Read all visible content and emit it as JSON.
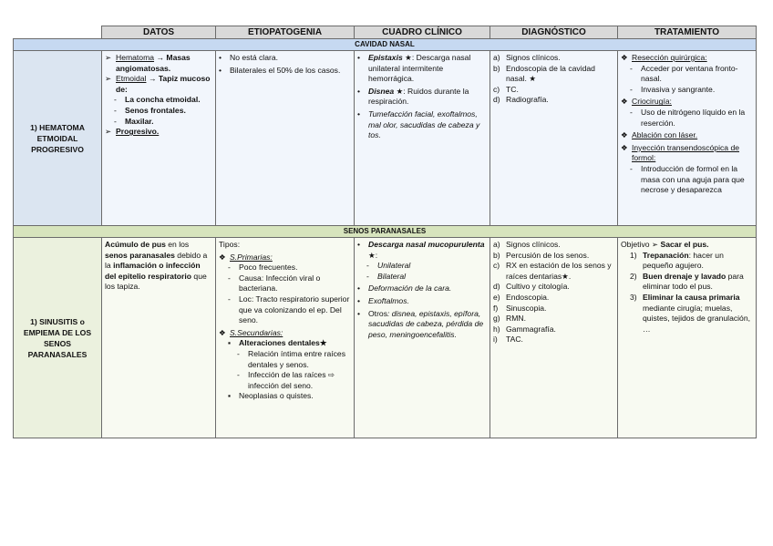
{
  "headers": [
    "DATOS",
    "ETIOPATOGENIA",
    "CUADRO CLÍNICO",
    "DIAGNÓSTICO",
    "TRATAMIENTO"
  ],
  "sections": [
    {
      "band": "CAVIDAD NASAL",
      "band_color": "#c6d9f1",
      "label": "1) HEMATOMA ETMOIDAL PROGRESIVO",
      "cells": [
        [
          {
            "m": "➢",
            "i": 0,
            "p": [
              {
                "t": "Hematoma",
                "s": "u"
              },
              {
                "t": " → "
              },
              {
                "t": "Masas angiomatosas.",
                "s": "b"
              }
            ]
          },
          {
            "m": "➢",
            "i": 0,
            "p": [
              {
                "t": "Etmoidal",
                "s": "u"
              },
              {
                "t": " → "
              },
              {
                "t": "Tapiz mucoso de:",
                "s": "b"
              }
            ]
          },
          {
            "m": "-",
            "i": 1,
            "p": [
              {
                "t": "La concha etmoidal.",
                "s": "b"
              }
            ]
          },
          {
            "m": "-",
            "i": 1,
            "p": [
              {
                "t": "Senos frontales.",
                "s": "b"
              }
            ]
          },
          {
            "m": "-",
            "i": 1,
            "p": [
              {
                "t": "Maxilar.",
                "s": "b"
              }
            ]
          },
          {
            "m": "➢",
            "i": 0,
            "p": [
              {
                "t": "Progresivo.",
                "s": "b u"
              }
            ]
          }
        ],
        [
          {
            "m": "•",
            "i": 0,
            "p": [
              {
                "t": "No está clara."
              }
            ]
          },
          {
            "m": "•",
            "i": 0,
            "p": [
              {
                "t": "Bilaterales el 50% de los casos."
              }
            ]
          }
        ],
        [
          {
            "m": "•",
            "i": 0,
            "p": [
              {
                "t": "Epistaxis",
                "s": "b i"
              },
              {
                "t": " ★: Descarga nasal unilateral intermitente hemorrágica."
              }
            ]
          },
          {
            "m": "•",
            "i": 0,
            "p": [
              {
                "t": "Disnea",
                "s": "b i"
              },
              {
                "t": " ★: Ruidos durante la respiración."
              }
            ]
          },
          {
            "m": "•",
            "i": 0,
            "p": [
              {
                "t": "Tumefacción facial, exoftalmos, mal olor, sacudidas de cabeza y tos.",
                "s": "i"
              }
            ]
          }
        ],
        [
          {
            "m": "a)",
            "i": 0,
            "p": [
              {
                "t": "Signos clínicos."
              }
            ]
          },
          {
            "m": "b)",
            "i": 0,
            "p": [
              {
                "t": "Endoscopia de la cavidad nasal. ★"
              }
            ]
          },
          {
            "m": "c)",
            "i": 0,
            "p": [
              {
                "t": "TC."
              }
            ]
          },
          {
            "m": "d)",
            "i": 0,
            "p": [
              {
                "t": "Radiografía."
              }
            ]
          }
        ],
        [
          {
            "m": "❖",
            "i": 0,
            "p": [
              {
                "t": "Resección quirúrgica:",
                "s": "u"
              }
            ]
          },
          {
            "m": "-",
            "i": 1,
            "p": [
              {
                "t": "Acceder por ventana fronto-nasal."
              }
            ]
          },
          {
            "m": "-",
            "i": 1,
            "p": [
              {
                "t": "Invasiva y sangrante."
              }
            ]
          },
          {
            "m": "❖",
            "i": 0,
            "p": [
              {
                "t": "Criocirugía:",
                "s": "u"
              }
            ]
          },
          {
            "m": "-",
            "i": 1,
            "p": [
              {
                "t": "Uso de nitrógeno líquido en la reserción."
              }
            ]
          },
          {
            "m": "❖",
            "i": 0,
            "p": [
              {
                "t": "Ablación con láser.",
                "s": "u"
              }
            ]
          },
          {
            "m": "❖",
            "i": 0,
            "p": [
              {
                "t": "Inyección transendoscópica de formol:",
                "s": "u"
              }
            ]
          },
          {
            "m": "-",
            "i": 1,
            "p": [
              {
                "t": "Introducción de formol en la masa con una aguja para que necrose y desaparezca"
              }
            ]
          }
        ]
      ]
    },
    {
      "band": "SENOS PARANASALES",
      "band_color": "#d7e4bd",
      "label": "1) SINUSITIS o EMPIEMA DE LOS SENOS PARANASALES",
      "cells": [
        [
          {
            "m": "",
            "i": 0,
            "p": [
              {
                "t": "Acúmulo de pus",
                "s": "b"
              },
              {
                "t": " en los "
              },
              {
                "t": "senos paranasales",
                "s": "b"
              },
              {
                "t": " debido a la "
              },
              {
                "t": "inflamación o infección del epitelio respiratorio",
                "s": "b"
              },
              {
                "t": " que los tapiza."
              }
            ]
          }
        ],
        [
          {
            "m": "",
            "i": 0,
            "p": [
              {
                "t": "Tipos:"
              }
            ]
          },
          {
            "m": "❖",
            "i": 0,
            "p": [
              {
                "t": "S.Primarias:",
                "s": "i u"
              }
            ]
          },
          {
            "m": "-",
            "i": 1,
            "p": [
              {
                "t": "Poco frecuentes."
              }
            ]
          },
          {
            "m": "-",
            "i": 1,
            "p": [
              {
                "t": "Causa: Infección viral o bacteriana."
              }
            ]
          },
          {
            "m": "-",
            "i": 1,
            "p": [
              {
                "t": "Loc: Tracto respiratorio superior que va colonizando el ep. Del seno."
              }
            ]
          },
          {
            "m": "❖",
            "i": 0,
            "p": [
              {
                "t": "S.Secundarias:",
                "s": "i u"
              }
            ]
          },
          {
            "m": "▪",
            "i": 1,
            "p": [
              {
                "t": "Alteraciones dentales★",
                "s": "b"
              }
            ]
          },
          {
            "m": "-",
            "i": 2,
            "p": [
              {
                "t": "Relación íntima entre raíces dentales y senos."
              }
            ]
          },
          {
            "m": "-",
            "i": 2,
            "p": [
              {
                "t": "Infección de las raíces ⇨ infección del seno."
              }
            ]
          },
          {
            "m": "▪",
            "i": 1,
            "p": [
              {
                "t": "Neoplasias o quistes."
              }
            ]
          }
        ],
        [
          {
            "m": "•",
            "i": 0,
            "p": [
              {
                "t": "Descarga nasal mucopurulenta",
                "s": "b i"
              },
              {
                "t": " ★:"
              }
            ]
          },
          {
            "m": "-",
            "i": 1,
            "p": [
              {
                "t": "Unilateral",
                "s": "i"
              }
            ]
          },
          {
            "m": "-",
            "i": 1,
            "p": [
              {
                "t": "Bilateral",
                "s": "i"
              }
            ]
          },
          {
            "m": "•",
            "i": 0,
            "p": [
              {
                "t": "Deformación de la cara.",
                "s": "i"
              }
            ]
          },
          {
            "m": "•",
            "i": 0,
            "p": [
              {
                "t": "Exoftalmos.",
                "s": "i"
              }
            ]
          },
          {
            "m": "•",
            "i": 0,
            "p": [
              {
                "t": "Otros"
              },
              {
                "t": ": disnea, epistaxis, epífora, sacudidas de cabeza, pérdida de peso, meningoencefalitis.",
                "s": "i"
              }
            ]
          }
        ],
        [
          {
            "m": "a)",
            "i": 0,
            "p": [
              {
                "t": "Signos clínicos."
              }
            ]
          },
          {
            "m": "b)",
            "i": 0,
            "p": [
              {
                "t": "Percusión de los senos."
              }
            ]
          },
          {
            "m": "c)",
            "i": 0,
            "p": [
              {
                "t": "RX en estación de los senos y raíces dentarias★."
              }
            ]
          },
          {
            "m": "d)",
            "i": 0,
            "p": [
              {
                "t": "Cultivo y citología."
              }
            ]
          },
          {
            "m": "e)",
            "i": 0,
            "p": [
              {
                "t": "Endoscopia."
              }
            ]
          },
          {
            "m": "f)",
            "i": 0,
            "p": [
              {
                "t": "Sinuscopia."
              }
            ]
          },
          {
            "m": "g)",
            "i": 0,
            "p": [
              {
                "t": "RMN."
              }
            ]
          },
          {
            "m": "h)",
            "i": 0,
            "p": [
              {
                "t": "Gammagrafía."
              }
            ]
          },
          {
            "m": "i)",
            "i": 0,
            "p": [
              {
                "t": "TAC."
              }
            ]
          }
        ],
        [
          {
            "m": "",
            "i": 0,
            "p": [
              {
                "t": "Objetivo ➢ "
              },
              {
                "t": "Sacar el pus.",
                "s": "b"
              }
            ]
          },
          {
            "m": "1)",
            "i": 1,
            "p": [
              {
                "t": "Trepanación",
                "s": "b"
              },
              {
                "t": ": hacer un pequeño agujero."
              }
            ]
          },
          {
            "m": "2)",
            "i": 1,
            "p": [
              {
                "t": "Buen drenaje y lavado",
                "s": "b"
              },
              {
                "t": " para eliminar todo el pus."
              }
            ]
          },
          {
            "m": "3)",
            "i": 1,
            "p": [
              {
                "t": "Eliminar la causa primaria",
                "s": "b"
              },
              {
                "t": " mediante cirugía; muelas, quistes, tejidos de granulación, …"
              }
            ]
          }
        ]
      ]
    }
  ]
}
